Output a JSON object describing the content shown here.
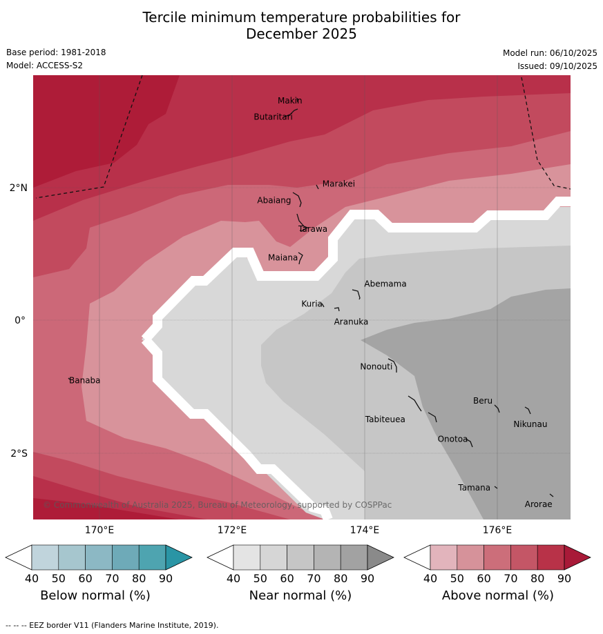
{
  "title": {
    "line1": "Tercile minimum temperature probabilities for",
    "line2": "December 2025"
  },
  "meta": {
    "base_period": "Base period: 1981-2018",
    "model": "Model: ACCESS-S2",
    "model_run": "Model run: 06/10/2025",
    "issued": "Issued: 09/10/2025"
  },
  "axes": {
    "longitude_labels": [
      "170°E",
      "172°E",
      "174°E",
      "176°E"
    ],
    "latitude_labels": [
      "2°N",
      "0°",
      "2°S"
    ]
  },
  "islands": [
    {
      "name": "Makin",
      "lon": 173.0,
      "lat": 3.3
    },
    {
      "name": "Butaritari",
      "lon": 172.9,
      "lat": 3.1
    },
    {
      "name": "Marakei",
      "lon": 173.3,
      "lat": 2.0
    },
    {
      "name": "Abaiang",
      "lon": 172.9,
      "lat": 1.8
    },
    {
      "name": "Tarawa",
      "lon": 173.0,
      "lat": 1.4
    },
    {
      "name": "Maiana",
      "lon": 173.0,
      "lat": 0.9
    },
    {
      "name": "Abemama",
      "lon": 173.9,
      "lat": 0.4
    },
    {
      "name": "Kuria",
      "lon": 173.4,
      "lat": 0.2
    },
    {
      "name": "Aranuka",
      "lon": 173.6,
      "lat": 0.1
    },
    {
      "name": "Nonouti",
      "lon": 174.4,
      "lat": -0.7
    },
    {
      "name": "Banaba",
      "lon": 169.5,
      "lat": -0.9
    },
    {
      "name": "Tabiteuea",
      "lon": 174.8,
      "lat": -1.3
    },
    {
      "name": "Beru",
      "lon": 176.0,
      "lat": -1.3
    },
    {
      "name": "Nikunau",
      "lon": 176.4,
      "lat": -1.4
    },
    {
      "name": "Onotoa",
      "lon": 175.6,
      "lat": -1.8
    },
    {
      "name": "Tamana",
      "lon": 175.9,
      "lat": -2.5
    },
    {
      "name": "Arorae",
      "lon": 176.8,
      "lat": -2.7
    }
  ],
  "copyright": "© Commonwealth of Australia 2025, Bureau of Meteorology, supported by COSPPac",
  "colorbars": [
    {
      "title": "Below normal (%)",
      "ticks": [
        "40",
        "50",
        "60",
        "70",
        "80",
        "90"
      ],
      "colors": [
        "#c0d4dc",
        "#a6c6ce",
        "#8cb8c4",
        "#6eaab8",
        "#4ea4b0",
        "#2a95a5"
      ]
    },
    {
      "title": "Near normal (%)",
      "ticks": [
        "40",
        "50",
        "60",
        "70",
        "80",
        "90"
      ],
      "colors": [
        "#e4e4e4",
        "#d6d6d6",
        "#c6c6c6",
        "#b4b4b4",
        "#a2a2a2",
        "#8a8a8a"
      ]
    },
    {
      "title": "Above normal (%)",
      "ticks": [
        "40",
        "50",
        "60",
        "70",
        "80",
        "90"
      ],
      "colors": [
        "#e2b4bc",
        "#d6929a",
        "#cc6e7a",
        "#c45666",
        "#b83248",
        "#a81a38"
      ]
    }
  ],
  "footnote": "--  --  -- EEZ border V11 (Flanders Marine Institute, 2019)."
}
